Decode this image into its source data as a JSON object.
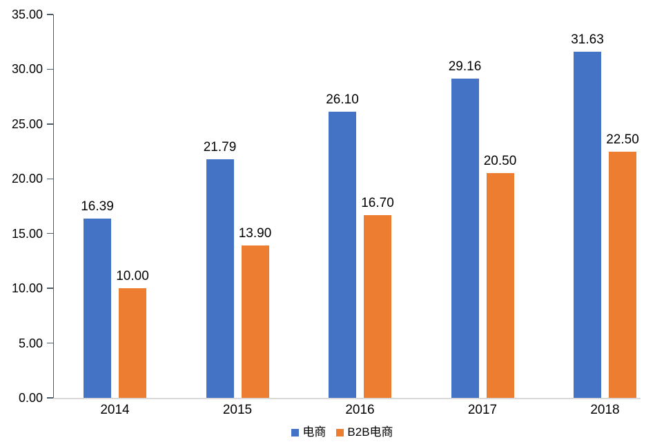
{
  "chart_data": {
    "type": "bar",
    "title": "",
    "xlabel": "",
    "ylabel": "",
    "categories": [
      "2014",
      "2015",
      "2016",
      "2017",
      "2018"
    ],
    "series": [
      {
        "name": "电商",
        "color": "#4472C4",
        "values": [
          16.39,
          21.79,
          26.1,
          29.16,
          31.63
        ],
        "value_labels": [
          "16.39",
          "21.79",
          "26.10",
          "29.16",
          "31.63"
        ]
      },
      {
        "name": "B2B电商",
        "color": "#ED7D31",
        "values": [
          10.0,
          13.9,
          16.7,
          20.5,
          22.5
        ],
        "value_labels": [
          "10.00",
          "13.90",
          "16.70",
          "20.50",
          "22.50"
        ]
      }
    ],
    "ylim": [
      0,
      35
    ],
    "ytick_values": [
      0,
      5,
      10,
      15,
      20,
      25,
      30,
      35
    ],
    "ytick_labels": [
      "0.00",
      "5.00",
      "10.00",
      "15.00",
      "20.00",
      "25.00",
      "30.00",
      "35.00"
    ],
    "grid": false,
    "legend_position": "bottom",
    "colors": {
      "axis_line": "#4c5a66",
      "baseline": "#d9d9d9",
      "label_text": "#000000",
      "background": "#ffffff"
    }
  }
}
